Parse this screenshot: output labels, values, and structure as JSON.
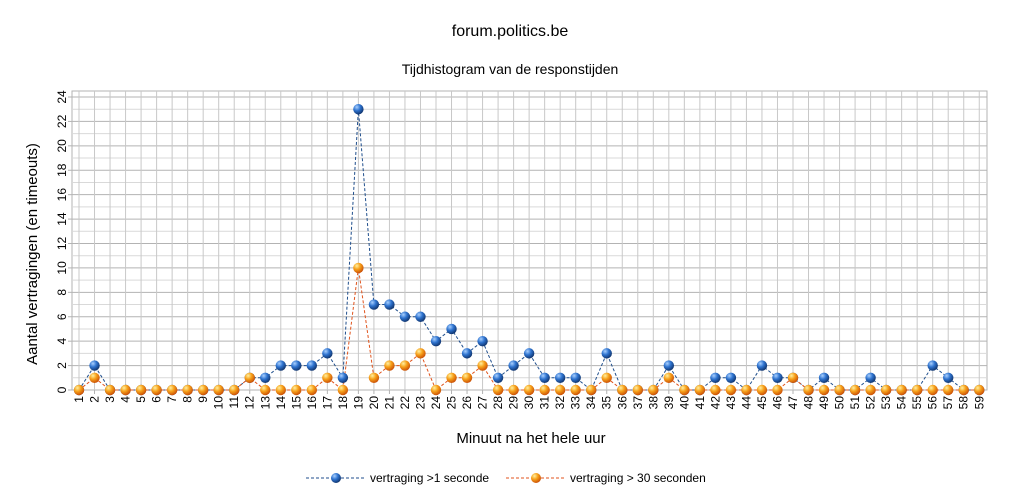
{
  "chart_data": {
    "type": "line",
    "title": "forum.politics.be",
    "subtitle": "Tijdhistogram van de responstijden",
    "xlabel": "Minuut na het hele uur",
    "ylabel": "Aantal vertragingen (en timeouts)",
    "x": [
      1,
      2,
      3,
      4,
      5,
      6,
      7,
      8,
      9,
      10,
      11,
      12,
      13,
      14,
      15,
      16,
      17,
      18,
      19,
      20,
      21,
      22,
      23,
      24,
      25,
      26,
      27,
      28,
      29,
      30,
      31,
      32,
      33,
      34,
      35,
      36,
      37,
      38,
      39,
      40,
      41,
      42,
      43,
      44,
      45,
      46,
      47,
      48,
      49,
      50,
      51,
      52,
      53,
      54,
      55,
      56,
      57,
      58,
      59
    ],
    "ylim": [
      0,
      24
    ],
    "yticks": [
      0,
      2,
      4,
      6,
      8,
      10,
      12,
      14,
      16,
      18,
      20,
      22,
      24
    ],
    "grid": true,
    "legend_position": "bottom",
    "series": [
      {
        "name": "vertraging >1 seconde",
        "color": "#1f5fb0",
        "line_color": "#1f4e8c",
        "values": [
          0,
          2,
          0,
          0,
          0,
          0,
          0,
          0,
          0,
          0,
          0,
          1,
          1,
          2,
          2,
          2,
          3,
          1,
          23,
          7,
          7,
          6,
          6,
          4,
          5,
          3,
          4,
          1,
          2,
          3,
          1,
          1,
          1,
          0,
          3,
          0,
          0,
          0,
          2,
          0,
          0,
          1,
          1,
          0,
          2,
          1,
          1,
          0,
          1,
          0,
          0,
          1,
          0,
          0,
          0,
          2,
          1,
          0,
          0
        ]
      },
      {
        "name": "vertraging > 30 seconden",
        "color": "#f07d0e",
        "line_color": "#e0531c",
        "values": [
          0,
          1,
          0,
          0,
          0,
          0,
          0,
          0,
          0,
          0,
          0,
          1,
          0,
          0,
          0,
          0,
          1,
          0,
          10,
          1,
          2,
          2,
          3,
          0,
          1,
          1,
          2,
          0,
          0,
          0,
          0,
          0,
          0,
          0,
          1,
          0,
          0,
          0,
          1,
          0,
          0,
          0,
          0,
          0,
          0,
          0,
          1,
          0,
          0,
          0,
          0,
          0,
          0,
          0,
          0,
          0,
          0,
          0,
          0
        ]
      }
    ]
  }
}
